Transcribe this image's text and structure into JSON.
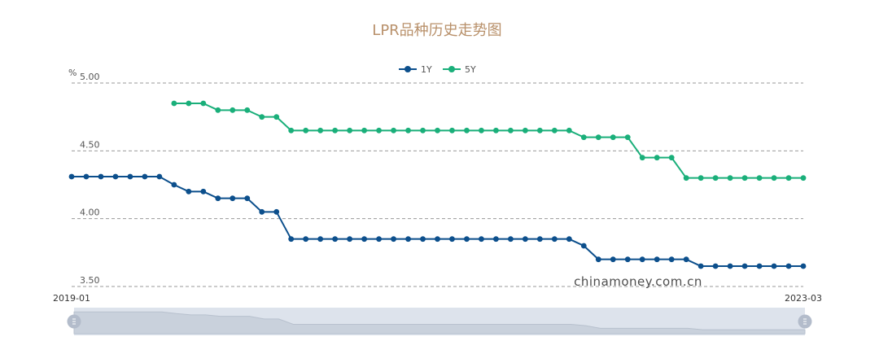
{
  "chart_data": {
    "type": "line",
    "title": "LPR品种历史走势图",
    "y_unit": "%",
    "ylim": [
      3.5,
      5.0
    ],
    "yticks": [
      "5.00",
      "4.50",
      "4.00",
      "3.50"
    ],
    "ytick_values": [
      5.0,
      4.5,
      4.0,
      3.5
    ],
    "grid": true,
    "grid_style": "dashed",
    "legend_position": "top-center",
    "x_range_labels": [
      "2019-01",
      "2023-03"
    ],
    "series": [
      {
        "name": "1Y",
        "color": "#0c4f8c",
        "start_index": 0,
        "values": [
          4.31,
          4.31,
          4.31,
          4.31,
          4.31,
          4.31,
          4.31,
          4.25,
          4.2,
          4.2,
          4.15,
          4.15,
          4.15,
          4.05,
          4.05,
          3.85,
          3.85,
          3.85,
          3.85,
          3.85,
          3.85,
          3.85,
          3.85,
          3.85,
          3.85,
          3.85,
          3.85,
          3.85,
          3.85,
          3.85,
          3.85,
          3.85,
          3.85,
          3.85,
          3.85,
          3.8,
          3.7,
          3.7,
          3.7,
          3.7,
          3.7,
          3.7,
          3.7,
          3.65,
          3.65,
          3.65,
          3.65,
          3.65,
          3.65,
          3.65,
          3.65
        ]
      },
      {
        "name": "5Y",
        "color": "#1aaf7a",
        "start_index": 7,
        "values": [
          4.85,
          4.85,
          4.85,
          4.8,
          4.8,
          4.8,
          4.75,
          4.75,
          4.65,
          4.65,
          4.65,
          4.65,
          4.65,
          4.65,
          4.65,
          4.65,
          4.65,
          4.65,
          4.65,
          4.65,
          4.65,
          4.65,
          4.65,
          4.65,
          4.65,
          4.65,
          4.65,
          4.65,
          4.6,
          4.6,
          4.6,
          4.6,
          4.45,
          4.45,
          4.45,
          4.3,
          4.3,
          4.3,
          4.3,
          4.3,
          4.3,
          4.3,
          4.3,
          4.3
        ]
      }
    ]
  },
  "watermark": "chinamoney.com.cn",
  "colors": {
    "title": "#b8906a",
    "grid": "#9a9a9a",
    "slider_bg": "#dde3ec",
    "slider_fill": "#c9d1dc",
    "slider_handle": "#b3bccb"
  }
}
